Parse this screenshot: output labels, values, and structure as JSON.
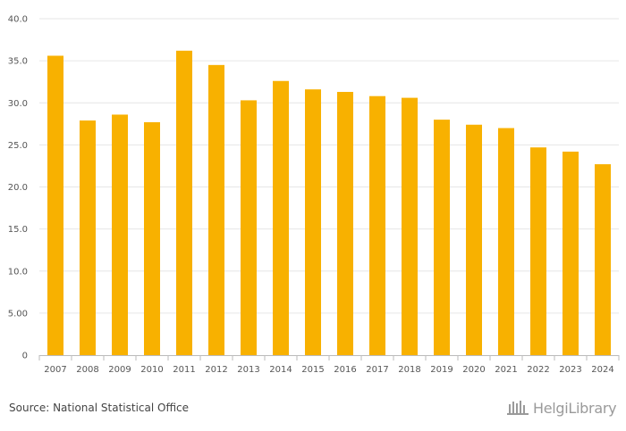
{
  "chart_data": {
    "type": "bar",
    "categories": [
      "2007",
      "2008",
      "2009",
      "2010",
      "2011",
      "2012",
      "2013",
      "2014",
      "2015",
      "2016",
      "2017",
      "2018",
      "2019",
      "2020",
      "2021",
      "2022",
      "2023",
      "2024"
    ],
    "values": [
      35.6,
      27.9,
      28.6,
      27.7,
      36.2,
      34.5,
      30.3,
      32.6,
      31.6,
      31.3,
      30.8,
      30.6,
      28.0,
      27.4,
      27.0,
      24.7,
      24.2,
      22.7
    ],
    "ylim": [
      0,
      40
    ],
    "yticks": [
      0,
      5,
      10,
      15,
      20,
      25,
      30,
      35,
      40
    ],
    "ytick_labels": [
      "0",
      "5.00",
      "10.0",
      "15.0",
      "20.0",
      "25.0",
      "30.0",
      "35.0",
      "40.0"
    ],
    "title": "",
    "xlabel": "",
    "ylabel": "",
    "grid": true,
    "bar_color": "#f8b100"
  },
  "footer": {
    "source": "Source: National Statistical Office",
    "brand_name": "HelgiLibrary",
    "brand_icon": "library-columns-icon"
  },
  "colors": {
    "grid": "#e6e6e6",
    "axis": "#bbbbbb",
    "brand": "#9a9a9a"
  }
}
